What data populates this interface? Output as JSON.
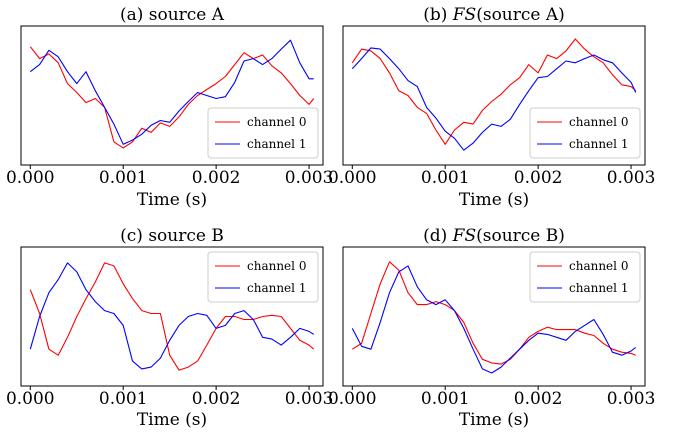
{
  "chart_data": [
    {
      "type": "line",
      "title": "(a) source A",
      "xlabel": "Time (s)",
      "xticks": [
        "0.000",
        "0.001",
        "0.002",
        "0.003"
      ],
      "xlim": [
        -0.0001,
        0.00315
      ],
      "ylim": [
        -1.0,
        1.0
      ],
      "legend": "lower-right",
      "series": [
        {
          "name": "channel 0",
          "color": "#ff0000",
          "x": [
            0,
            0.0001,
            0.0002,
            0.0003,
            0.0004,
            0.0005,
            0.0006,
            0.0007,
            0.0008,
            0.0009,
            0.001,
            0.0011,
            0.0012,
            0.0013,
            0.0014,
            0.0015,
            0.0016,
            0.0017,
            0.0018,
            0.0019,
            0.002,
            0.0021,
            0.0022,
            0.0023,
            0.0024,
            0.0025,
            0.0026,
            0.0027,
            0.0028,
            0.0029,
            0.003,
            0.00305
          ],
          "values": [
            0.82,
            0.62,
            0.7,
            0.55,
            0.2,
            0.05,
            -0.12,
            -0.05,
            -0.2,
            -0.78,
            -0.88,
            -0.78,
            -0.55,
            -0.62,
            -0.46,
            -0.52,
            -0.36,
            -0.15,
            0.0,
            0.1,
            0.2,
            0.32,
            0.52,
            0.72,
            0.62,
            0.68,
            0.5,
            0.38,
            0.2,
            0.0,
            -0.15,
            -0.05
          ]
        },
        {
          "name": "channel 1",
          "color": "#0000ff",
          "x": [
            0,
            0.0001,
            0.0002,
            0.0003,
            0.0004,
            0.0005,
            0.0006,
            0.0007,
            0.0008,
            0.0009,
            0.001,
            0.0011,
            0.0012,
            0.0013,
            0.0014,
            0.0015,
            0.0016,
            0.0017,
            0.0018,
            0.0019,
            0.002,
            0.0021,
            0.0022,
            0.0023,
            0.0024,
            0.0025,
            0.0026,
            0.0027,
            0.0028,
            0.0029,
            0.003,
            0.00305
          ],
          "values": [
            0.4,
            0.52,
            0.76,
            0.65,
            0.4,
            0.2,
            0.4,
            0.08,
            -0.2,
            -0.48,
            -0.82,
            -0.75,
            -0.65,
            -0.5,
            -0.42,
            -0.45,
            -0.26,
            -0.1,
            0.05,
            0.0,
            -0.05,
            -0.02,
            0.22,
            0.58,
            0.62,
            0.52,
            0.62,
            0.78,
            0.93,
            0.55,
            0.28,
            0.28
          ]
        }
      ]
    },
    {
      "type": "line",
      "title_prefix": "(b) ",
      "title_italic": "FS",
      "title_suffix": "(source A)",
      "xlabel": "Time (s)",
      "xticks": [
        "0.000",
        "0.001",
        "0.002",
        "0.003"
      ],
      "xlim": [
        -0.0001,
        0.00315
      ],
      "ylim": [
        -1.0,
        1.0
      ],
      "legend": "lower-right",
      "series": [
        {
          "name": "channel 0",
          "color": "#ff0000",
          "x": [
            0,
            0.0001,
            0.0002,
            0.0003,
            0.0004,
            0.0005,
            0.0006,
            0.0007,
            0.0008,
            0.0009,
            0.001,
            0.0011,
            0.0012,
            0.0013,
            0.0014,
            0.0015,
            0.0016,
            0.0017,
            0.0018,
            0.0019,
            0.002,
            0.0021,
            0.0022,
            0.0023,
            0.0024,
            0.0025,
            0.0026,
            0.0027,
            0.0028,
            0.0029,
            0.003,
            0.00305
          ],
          "values": [
            0.55,
            0.78,
            0.75,
            0.62,
            0.38,
            0.08,
            0.0,
            -0.2,
            -0.3,
            -0.58,
            -0.82,
            -0.58,
            -0.45,
            -0.48,
            -0.25,
            -0.1,
            0.02,
            0.18,
            0.3,
            0.52,
            0.38,
            0.68,
            0.62,
            0.75,
            0.95,
            0.78,
            0.65,
            0.55,
            0.35,
            0.18,
            0.15,
            0.08
          ]
        },
        {
          "name": "channel 1",
          "color": "#0000ff",
          "x": [
            0,
            0.0001,
            0.0002,
            0.0003,
            0.0004,
            0.0005,
            0.0006,
            0.0007,
            0.0008,
            0.0009,
            0.001,
            0.0011,
            0.0012,
            0.0013,
            0.0014,
            0.0015,
            0.0016,
            0.0017,
            0.0018,
            0.0019,
            0.002,
            0.0021,
            0.0022,
            0.0023,
            0.0024,
            0.0025,
            0.0026,
            0.0027,
            0.0028,
            0.0029,
            0.003,
            0.00305
          ],
          "values": [
            0.45,
            0.62,
            0.8,
            0.78,
            0.62,
            0.45,
            0.25,
            0.15,
            -0.2,
            -0.38,
            -0.6,
            -0.72,
            -0.92,
            -0.8,
            -0.62,
            -0.48,
            -0.52,
            -0.4,
            -0.15,
            0.08,
            0.3,
            0.32,
            0.45,
            0.58,
            0.55,
            0.62,
            0.68,
            0.6,
            0.55,
            0.38,
            0.22,
            0.05
          ]
        }
      ]
    },
    {
      "type": "line",
      "title": "(c) source B",
      "xlabel": "Time (s)",
      "xticks": [
        "0.000",
        "0.001",
        "0.002",
        "0.003"
      ],
      "xlim": [
        -0.0001,
        0.00315
      ],
      "ylim": [
        -1.0,
        1.0
      ],
      "legend": "upper-right",
      "series": [
        {
          "name": "channel 0",
          "color": "#ff0000",
          "x": [
            0,
            0.0001,
            0.0002,
            0.0003,
            0.0004,
            0.0005,
            0.0006,
            0.0007,
            0.0008,
            0.0009,
            0.001,
            0.0011,
            0.0012,
            0.0013,
            0.0014,
            0.0015,
            0.0016,
            0.0017,
            0.0018,
            0.0019,
            0.002,
            0.0021,
            0.0022,
            0.0023,
            0.0024,
            0.0025,
            0.0026,
            0.0027,
            0.0028,
            0.0029,
            0.003,
            0.00305
          ],
          "values": [
            0.45,
            0.05,
            -0.55,
            -0.65,
            -0.35,
            0.0,
            0.3,
            0.58,
            0.9,
            0.85,
            0.55,
            0.3,
            0.1,
            0.05,
            0.05,
            -0.65,
            -0.9,
            -0.85,
            -0.75,
            -0.48,
            -0.2,
            0.0,
            0.0,
            -0.05,
            -0.05,
            0.0,
            0.02,
            0.0,
            -0.2,
            -0.4,
            -0.48,
            -0.55
          ]
        },
        {
          "name": "channel 1",
          "color": "#0000ff",
          "x": [
            0,
            0.0001,
            0.0002,
            0.0003,
            0.0004,
            0.0005,
            0.0006,
            0.0007,
            0.0008,
            0.0009,
            0.001,
            0.0011,
            0.0012,
            0.0013,
            0.0014,
            0.0015,
            0.0016,
            0.0017,
            0.0018,
            0.0019,
            0.002,
            0.0021,
            0.0022,
            0.0023,
            0.0024,
            0.0025,
            0.0026,
            0.0027,
            0.0028,
            0.0029,
            0.003,
            0.00305
          ],
          "values": [
            -0.55,
            0.0,
            0.4,
            0.62,
            0.9,
            0.75,
            0.45,
            0.25,
            0.1,
            0.05,
            -0.15,
            -0.75,
            -0.88,
            -0.85,
            -0.7,
            -0.4,
            -0.15,
            0.0,
            0.05,
            0.02,
            -0.2,
            -0.15,
            0.05,
            0.1,
            -0.05,
            -0.35,
            -0.38,
            -0.48,
            -0.35,
            -0.2,
            -0.25,
            -0.3
          ]
        }
      ]
    },
    {
      "type": "line",
      "title_prefix": "(d) ",
      "title_italic": "FS",
      "title_suffix": "(source B)",
      "xlabel": "Time (s)",
      "xticks": [
        "0.000",
        "0.001",
        "0.002",
        "0.003"
      ],
      "xlim": [
        -0.0001,
        0.00315
      ],
      "ylim": [
        -1.0,
        1.0
      ],
      "legend": "upper-right",
      "series": [
        {
          "name": "channel 0",
          "color": "#ff0000",
          "x": [
            0,
            0.0001,
            0.0002,
            0.0003,
            0.0004,
            0.0005,
            0.0006,
            0.0007,
            0.0008,
            0.0009,
            0.001,
            0.0011,
            0.0012,
            0.0013,
            0.0014,
            0.0015,
            0.0016,
            0.0017,
            0.0018,
            0.0019,
            0.002,
            0.0021,
            0.0022,
            0.0023,
            0.0024,
            0.0025,
            0.0026,
            0.0027,
            0.0028,
            0.0029,
            0.003,
            0.00305
          ],
          "values": [
            -0.55,
            -0.45,
            0.05,
            0.55,
            0.92,
            0.78,
            0.4,
            0.2,
            0.2,
            0.25,
            0.2,
            0.1,
            -0.1,
            -0.45,
            -0.72,
            -0.78,
            -0.8,
            -0.72,
            -0.55,
            -0.35,
            -0.25,
            -0.18,
            -0.22,
            -0.22,
            -0.22,
            -0.28,
            -0.32,
            -0.45,
            -0.55,
            -0.6,
            -0.62,
            -0.65
          ]
        },
        {
          "name": "channel 1",
          "color": "#0000ff",
          "x": [
            0,
            0.0001,
            0.0002,
            0.0003,
            0.0004,
            0.0005,
            0.0006,
            0.0007,
            0.0008,
            0.0009,
            0.001,
            0.0011,
            0.0012,
            0.0013,
            0.0014,
            0.0015,
            0.0016,
            0.0017,
            0.0018,
            0.0019,
            0.002,
            0.0021,
            0.0022,
            0.0023,
            0.0024,
            0.0025,
            0.0026,
            0.0027,
            0.0028,
            0.0029,
            0.003,
            0.00305
          ],
          "values": [
            -0.2,
            -0.5,
            -0.55,
            -0.1,
            0.4,
            0.75,
            0.85,
            0.5,
            0.28,
            0.2,
            0.28,
            0.1,
            -0.2,
            -0.55,
            -0.88,
            -0.95,
            -0.85,
            -0.7,
            -0.55,
            -0.4,
            -0.28,
            -0.3,
            -0.35,
            -0.4,
            -0.25,
            -0.15,
            -0.05,
            -0.3,
            -0.6,
            -0.65,
            -0.58,
            -0.52
          ]
        }
      ]
    }
  ]
}
